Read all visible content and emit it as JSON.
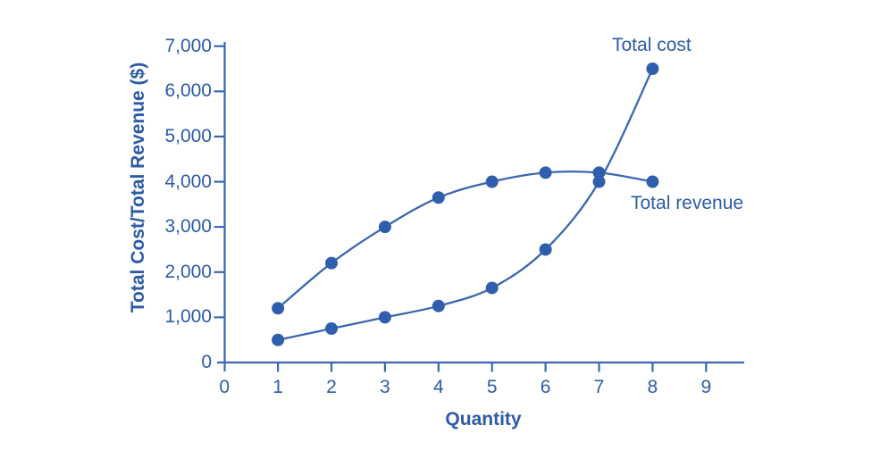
{
  "chart_data": {
    "type": "line",
    "x": [
      1,
      2,
      3,
      4,
      5,
      6,
      7,
      8
    ],
    "series": [
      {
        "name": "Total cost",
        "values": [
          500,
          750,
          1000,
          1250,
          1650,
          2500,
          4000,
          6500
        ]
      },
      {
        "name": "Total revenue",
        "values": [
          1200,
          2200,
          3000,
          3650,
          4000,
          4200,
          4200,
          4000
        ]
      }
    ],
    "title": "",
    "xlabel": "Quantity",
    "ylabel": "Total Cost/Total Revenue ($)",
    "xlim": [
      0,
      9.7
    ],
    "ylim": [
      0,
      7000
    ],
    "grid": false,
    "legend_position": "inline annotations near line ends",
    "marker": "filled circle",
    "x_ticks": {
      "values": [
        0,
        1,
        2,
        3,
        4,
        5,
        6,
        7,
        8,
        9
      ],
      "labels": [
        "0",
        "1",
        "2",
        "3",
        "4",
        "5",
        "6",
        "7",
        "8",
        "9"
      ]
    },
    "y_ticks": {
      "values": [
        0,
        1000,
        2000,
        3000,
        4000,
        5000,
        6000,
        7000
      ],
      "labels": [
        "0",
        "1,000",
        "2,000",
        "3,000",
        "4,000",
        "5,000",
        "6,000",
        "7,000"
      ]
    },
    "annotations": [
      {
        "text": "Total cost",
        "series": "Total cost",
        "anchor": "above last point"
      },
      {
        "text": "Total revenue",
        "series": "Total revenue",
        "anchor": "below last point"
      }
    ]
  },
  "colors": {
    "text": "#2d5ba6",
    "axis": "#3a67b0",
    "line": "#3a67b0",
    "marker": "#2f5fac",
    "background": "#ffffff"
  }
}
